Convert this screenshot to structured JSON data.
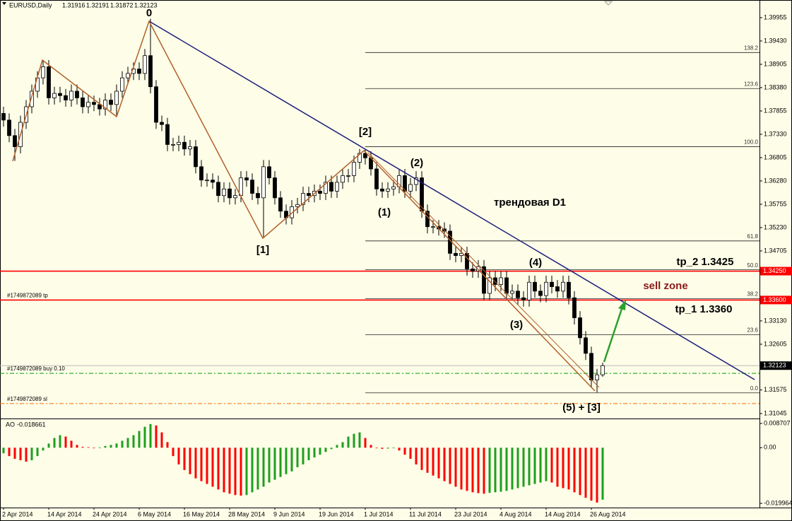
{
  "chart_data": {
    "type": "candlestick",
    "title": "EURUSD,Daily",
    "categories": [
      "2 Apr 2014",
      null,
      null,
      null,
      null,
      null,
      null,
      null,
      "14 Apr 2014",
      null,
      null,
      null,
      null,
      null,
      null,
      null,
      "24 Apr 2014",
      null,
      null,
      null,
      null,
      null,
      null,
      null,
      "6 May 2014",
      null,
      null,
      null,
      null,
      null,
      null,
      null,
      "16 May 2014",
      null,
      null,
      null,
      null,
      null,
      null,
      null,
      "28 May 2014",
      null,
      null,
      null,
      null,
      null,
      null,
      null,
      "9 Jun 2014",
      null,
      null,
      null,
      null,
      null,
      null,
      null,
      "19 Jun 2014",
      null,
      null,
      null,
      null,
      null,
      null,
      null,
      "1 Jul 2014",
      null,
      null,
      null,
      null,
      null,
      null,
      null,
      "11 Jul 2014",
      null,
      null,
      null,
      null,
      null,
      null,
      null,
      "23 Jul 2014",
      null,
      null,
      null,
      null,
      null,
      null,
      null,
      "4 Aug 2014",
      null,
      null,
      null,
      null,
      null,
      null,
      null,
      "14 Aug 2014",
      null,
      null,
      null,
      null,
      null,
      null,
      null,
      "26 Aug 2014",
      null,
      null
    ],
    "open": [
      1.378,
      1.3765,
      1.373,
      1.3705,
      1.376,
      1.3795,
      1.383,
      1.386,
      1.3885,
      1.3815,
      1.3825,
      1.382,
      1.381,
      1.383,
      1.3815,
      1.3795,
      1.3805,
      1.38,
      1.379,
      1.381,
      1.38,
      1.383,
      1.386,
      1.387,
      1.388,
      1.387,
      1.391,
      1.384,
      1.376,
      1.3755,
      1.371,
      1.371,
      1.3715,
      1.37,
      1.3705,
      1.366,
      1.363,
      1.363,
      1.3625,
      1.3595,
      1.361,
      1.359,
      1.3595,
      1.3635,
      1.363,
      1.36,
      1.359,
      1.366,
      1.3635,
      1.359,
      1.356,
      1.3545,
      1.357,
      1.3575,
      1.36,
      1.3595,
      1.3605,
      1.36,
      1.3625,
      1.3605,
      1.3625,
      1.364,
      1.364,
      1.367,
      1.369,
      1.368,
      1.3655,
      1.361,
      1.3605,
      1.361,
      1.3615,
      1.364,
      1.3605,
      1.362,
      1.3635,
      1.356,
      1.3525,
      1.3525,
      1.352,
      1.3515,
      1.3465,
      1.346,
      1.3465,
      1.343,
      1.3425,
      1.3435,
      1.3375,
      1.341,
      1.3395,
      1.341,
      1.3375,
      1.338,
      1.3365,
      1.336,
      1.34,
      1.338,
      1.337,
      1.34,
      1.339,
      1.338,
      1.34,
      1.3365,
      1.332,
      1.3275,
      1.324,
      1.318,
      1.31916
    ],
    "high": [
      1.3795,
      1.378,
      1.3745,
      1.3775,
      1.381,
      1.3845,
      1.3875,
      1.39,
      1.39,
      1.384,
      1.384,
      1.3835,
      1.3845,
      1.3845,
      1.383,
      1.382,
      1.382,
      1.3815,
      1.3825,
      1.3825,
      1.3845,
      1.3875,
      1.3885,
      1.3895,
      1.3895,
      1.3925,
      1.3993,
      1.3855,
      1.3775,
      1.377,
      1.3725,
      1.373,
      1.373,
      1.372,
      1.372,
      1.3675,
      1.3645,
      1.3645,
      1.364,
      1.3625,
      1.3625,
      1.361,
      1.365,
      1.365,
      1.3645,
      1.3615,
      1.3675,
      1.3675,
      1.365,
      1.3605,
      1.3575,
      1.3585,
      1.359,
      1.3615,
      1.3615,
      1.362,
      1.362,
      1.364,
      1.364,
      1.364,
      1.3655,
      1.3655,
      1.3685,
      1.37,
      1.37,
      1.3695,
      1.367,
      1.3625,
      1.3625,
      1.363,
      1.3655,
      1.3655,
      1.3635,
      1.365,
      1.365,
      1.3575,
      1.354,
      1.354,
      1.3535,
      1.353,
      1.348,
      1.348,
      1.348,
      1.3445,
      1.345,
      1.345,
      1.3425,
      1.3425,
      1.3425,
      1.3425,
      1.3395,
      1.3395,
      1.338,
      1.3415,
      1.3415,
      1.3395,
      1.3415,
      1.3415,
      1.3405,
      1.3415,
      1.3415,
      1.338,
      1.3335,
      1.329,
      1.3255,
      1.3205,
      1.32191
    ],
    "low": [
      1.375,
      1.3715,
      1.3673,
      1.369,
      1.3745,
      1.378,
      1.3815,
      1.3845,
      1.38,
      1.38,
      1.3805,
      1.3795,
      1.3795,
      1.38,
      1.378,
      1.378,
      1.3785,
      1.3775,
      1.3775,
      1.3785,
      1.3773,
      1.3815,
      1.3845,
      1.3855,
      1.3855,
      1.3855,
      1.3825,
      1.3745,
      1.374,
      1.3695,
      1.3695,
      1.3695,
      1.3685,
      1.3685,
      1.3645,
      1.3615,
      1.3615,
      1.361,
      1.358,
      1.358,
      1.3575,
      1.3575,
      1.358,
      1.3615,
      1.3585,
      1.3575,
      1.35,
      1.362,
      1.3575,
      1.3545,
      1.353,
      1.353,
      1.3555,
      1.356,
      1.358,
      1.358,
      1.3585,
      1.3585,
      1.359,
      1.359,
      1.361,
      1.3625,
      1.3625,
      1.3655,
      1.3665,
      1.364,
      1.3595,
      1.359,
      1.359,
      1.3595,
      1.36,
      1.359,
      1.359,
      1.3605,
      1.3545,
      1.351,
      1.351,
      1.3505,
      1.35,
      1.345,
      1.3445,
      1.3445,
      1.3415,
      1.341,
      1.341,
      1.336,
      1.336,
      1.338,
      1.338,
      1.336,
      1.336,
      1.335,
      1.3345,
      1.3345,
      1.3365,
      1.3355,
      1.3355,
      1.3375,
      1.3365,
      1.3365,
      1.335,
      1.3305,
      1.326,
      1.3225,
      1.3165,
      1.3152,
      1.31872
    ],
    "close": [
      1.3765,
      1.373,
      1.3705,
      1.376,
      1.3795,
      1.383,
      1.386,
      1.3885,
      1.3815,
      1.3825,
      1.382,
      1.381,
      1.383,
      1.3815,
      1.3795,
      1.3805,
      1.38,
      1.379,
      1.381,
      1.38,
      1.383,
      1.386,
      1.387,
      1.388,
      1.387,
      1.391,
      1.384,
      1.376,
      1.3755,
      1.371,
      1.371,
      1.3715,
      1.37,
      1.3705,
      1.366,
      1.363,
      1.363,
      1.3625,
      1.3595,
      1.361,
      1.359,
      1.3595,
      1.3635,
      1.363,
      1.36,
      1.359,
      1.366,
      1.3635,
      1.359,
      1.356,
      1.3545,
      1.357,
      1.3575,
      1.36,
      1.3595,
      1.3605,
      1.36,
      1.3625,
      1.3605,
      1.3625,
      1.364,
      1.364,
      1.367,
      1.369,
      1.368,
      1.3655,
      1.361,
      1.3605,
      1.361,
      1.3615,
      1.364,
      1.3605,
      1.362,
      1.3635,
      1.356,
      1.3525,
      1.3525,
      1.352,
      1.3515,
      1.3465,
      1.346,
      1.3465,
      1.343,
      1.3425,
      1.3435,
      1.3375,
      1.341,
      1.3395,
      1.341,
      1.3375,
      1.338,
      1.3365,
      1.336,
      1.34,
      1.338,
      1.337,
      1.34,
      1.339,
      1.338,
      1.34,
      1.3365,
      1.332,
      1.3275,
      1.324,
      1.318,
      1.31916,
      1.32123
    ],
    "up_color": "#ffffff",
    "down_color": "#000000",
    "ylim": [
      1.30965,
      1.40225
    ],
    "yticks": [
      1.39955,
      {
        "value": 1.3943,
        "label": "1.39430"
      },
      1.38905,
      {
        "value": 1.3838,
        "label": "1.38380"
      },
      1.37855,
      {
        "value": 1.3733,
        "label": "1.37330"
      },
      1.36805,
      {
        "value": 1.3628,
        "label": "1.36280"
      },
      1.35755,
      {
        "value": 1.3523,
        "label": "1.35230"
      },
      1.34705,
      {
        "value": 1.3313,
        "label": "1.33130"
      },
      1.32605,
      1.31575,
      1.31045
    ],
    "fib_levels": [
      {
        "label": "138.2",
        "price": 1.3917
      },
      {
        "label": "123.6",
        "price": 1.3836
      },
      {
        "label": "100.0",
        "price": 1.3705
      },
      {
        "label": "61.8",
        "price": 1.3493
      },
      {
        "label": "50.0",
        "price": 1.3428
      },
      {
        "label": "38.2",
        "price": 1.3363
      },
      {
        "label": "23.6",
        "price": 1.3282
      },
      {
        "label": "0.0",
        "price": 1.3151
      }
    ],
    "hlines": [
      {
        "price": 1.3425,
        "box": "1.34250",
        "color": "#ff0000"
      },
      {
        "price": 1.336,
        "box": "1.33600",
        "text": "#1749872089 tp",
        "color": "#ff0000"
      },
      {
        "price": 1.3195,
        "text": "#1749872089 buy 0.10",
        "color": "#00a000",
        "dash": true
      },
      {
        "price": 1.3127,
        "text": "#1749872089 sl",
        "color": "#ff6a00",
        "dash": true
      }
    ],
    "annotations": [
      "0",
      "[1]",
      "[2]",
      "(1)",
      "(2)",
      "(3)",
      "(4)",
      "(5) + [3]",
      "трендовая D1",
      "sell zone",
      "tp_2 1.3425",
      "tp_1 1.3360"
    ],
    "ao": {
      "name": "AO",
      "values": [
        -0.002,
        -0.003,
        -0.004,
        -0.0045,
        -0.005,
        -0.0045,
        -0.003,
        -0.001,
        0.0015,
        0.0035,
        0.0045,
        0.004,
        0.0025,
        0.001,
        0.0003,
        0.0002,
        -0.0002,
        0.0001,
        0.0006,
        0.001,
        0.0015,
        0.0025,
        0.0035,
        0.0045,
        0.006,
        0.0075,
        0.0085,
        0.008,
        0.0055,
        0.002,
        -0.003,
        -0.006,
        -0.008,
        -0.0095,
        -0.011,
        -0.012,
        -0.013,
        -0.014,
        -0.015,
        -0.016,
        -0.0165,
        -0.017,
        -0.0172,
        -0.017,
        -0.016,
        -0.015,
        -0.014,
        -0.0125,
        -0.0115,
        -0.0105,
        -0.0095,
        -0.0085,
        -0.007,
        -0.006,
        -0.0045,
        -0.0035,
        -0.0025,
        -0.0015,
        -0.0005,
        0.001,
        0.002,
        0.004,
        0.005,
        0.0055,
        0.0035,
        0.001,
        -0.0002,
        -0.0004,
        -0.0003,
        -0.0002,
        -0.001,
        -0.0025,
        -0.004,
        -0.006,
        -0.008,
        -0.009,
        -0.01,
        -0.011,
        -0.012,
        -0.013,
        -0.014,
        -0.015,
        -0.0155,
        -0.016,
        -0.0163,
        -0.0165,
        -0.0162,
        -0.016,
        -0.0158,
        -0.0155,
        -0.015,
        -0.0145,
        -0.014,
        -0.0135,
        -0.013,
        -0.0125,
        -0.012,
        -0.0125,
        -0.014,
        -0.0145,
        -0.015,
        -0.016,
        -0.017,
        -0.018,
        -0.019,
        -0.0197,
        -0.018661
      ],
      "up_color": "#1e9e1e",
      "down_color": "#ff0000",
      "ylim": [
        -0.02149,
        0.00998
      ],
      "yticks": [
        0.008707,
        {
          "value": 0,
          "label": "0.00"
        },
        -0.019964
      ]
    }
  }
}
